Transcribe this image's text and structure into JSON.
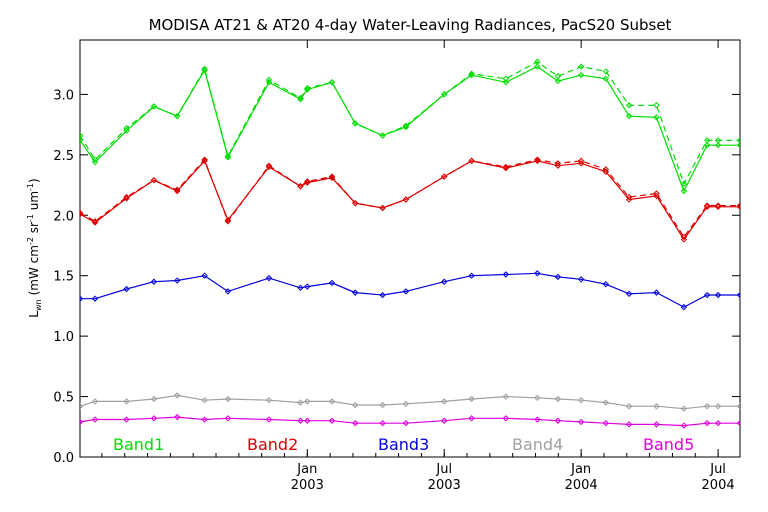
{
  "chart_data": {
    "type": "line",
    "title": "MODISA AT21 & AT20 4-day Water-Leaving Radiances, PacS20 Subset",
    "ylabel": "L_wn (mW cm^-2 sr^-1 um^-1)",
    "ylabel_main": "L",
    "ylabel_sub": "wn",
    "ylabel_rest": "(mW cm",
    "ylabel_exp1": "-2",
    "ylabel_mid1": " sr",
    "ylabel_exp2": "-1",
    "ylabel_mid2": " um",
    "ylabel_exp3": "-1",
    "ylabel_end": ")",
    "ylim": [
      0,
      3.45
    ],
    "yticks": [
      "0.0",
      "0.5",
      "1.0",
      "1.5",
      "2.0",
      "2.5",
      "3.0"
    ],
    "ytick_values": [
      0,
      0.5,
      1.0,
      1.5,
      2.0,
      2.5,
      3.0
    ],
    "xlim": [
      2002.17,
      2004.58
    ],
    "xticks": [
      {
        "value": 2003.0,
        "month": "Jan",
        "year": "2003"
      },
      {
        "value": 2003.5,
        "month": "Jul",
        "year": "2003"
      },
      {
        "value": 2004.0,
        "month": "Jan",
        "year": "2004"
      },
      {
        "value": 2004.5,
        "month": "Jul",
        "year": "2004"
      }
    ],
    "x": [
      2002.17,
      2002.225,
      2002.34,
      2002.44,
      2002.525,
      2002.625,
      2002.71,
      2002.86,
      2002.975,
      2003.0,
      2003.09,
      2003.175,
      2003.275,
      2003.36,
      2003.5,
      2003.6,
      2003.725,
      2003.84,
      2003.915,
      2004.0,
      2004.09,
      2004.175,
      2004.275,
      2004.375,
      2004.46,
      2004.5,
      2004.58
    ],
    "series": [
      {
        "name": "Band1",
        "color": "#00dd00",
        "values": [
          2.62,
          2.44,
          2.7,
          2.9,
          2.82,
          3.2,
          2.48,
          3.1,
          2.96,
          3.04,
          3.1,
          2.76,
          2.66,
          2.73,
          3.0,
          3.16,
          3.1,
          3.23,
          3.11,
          3.16,
          3.13,
          2.82,
          2.81,
          2.2,
          2.58,
          2.58,
          2.58
        ],
        "values2": [
          2.66,
          2.46,
          2.72,
          2.9,
          2.82,
          3.21,
          2.49,
          3.12,
          2.97,
          3.05,
          3.1,
          2.76,
          2.66,
          2.74,
          3.0,
          3.17,
          3.13,
          3.27,
          3.15,
          3.23,
          3.19,
          2.91,
          2.91,
          2.26,
          2.62,
          2.62,
          2.62
        ]
      },
      {
        "name": "Band2",
        "color": "#dd0000",
        "values": [
          2.01,
          1.94,
          2.14,
          2.29,
          2.2,
          2.45,
          1.96,
          2.4,
          2.24,
          2.27,
          2.31,
          2.1,
          2.06,
          2.13,
          2.32,
          2.45,
          2.39,
          2.45,
          2.41,
          2.43,
          2.36,
          2.13,
          2.16,
          1.8,
          2.07,
          2.07,
          2.07
        ],
        "values2": [
          2.02,
          1.95,
          2.15,
          2.29,
          2.21,
          2.46,
          1.95,
          2.41,
          2.24,
          2.28,
          2.32,
          2.1,
          2.06,
          2.13,
          2.32,
          2.45,
          2.4,
          2.46,
          2.43,
          2.45,
          2.38,
          2.15,
          2.18,
          1.82,
          2.08,
          2.08,
          2.08
        ]
      },
      {
        "name": "Band3",
        "color": "#0000dd",
        "values": [
          1.31,
          1.31,
          1.39,
          1.45,
          1.46,
          1.5,
          1.37,
          1.48,
          1.4,
          1.41,
          1.44,
          1.36,
          1.34,
          1.37,
          1.45,
          1.5,
          1.51,
          1.52,
          1.49,
          1.47,
          1.43,
          1.35,
          1.36,
          1.24,
          1.34,
          1.34,
          1.34
        ]
      },
      {
        "name": "Band4",
        "color": "#a0a0a0",
        "values": [
          0.42,
          0.46,
          0.46,
          0.48,
          0.51,
          0.47,
          0.48,
          0.47,
          0.45,
          0.46,
          0.46,
          0.43,
          0.43,
          0.44,
          0.46,
          0.48,
          0.5,
          0.49,
          0.48,
          0.47,
          0.45,
          0.42,
          0.42,
          0.4,
          0.42,
          0.42,
          0.42
        ]
      },
      {
        "name": "Band5",
        "color": "#dd00dd",
        "values": [
          0.29,
          0.31,
          0.31,
          0.32,
          0.33,
          0.31,
          0.32,
          0.31,
          0.3,
          0.3,
          0.3,
          0.28,
          0.28,
          0.28,
          0.3,
          0.32,
          0.32,
          0.31,
          0.3,
          0.29,
          0.28,
          0.27,
          0.27,
          0.26,
          0.28,
          0.28,
          0.28
        ]
      }
    ],
    "legend": [
      {
        "label": "Band1",
        "color": "#00dd00"
      },
      {
        "label": "Band2",
        "color": "#dd0000"
      },
      {
        "label": "Band3",
        "color": "#0000dd"
      },
      {
        "label": "Band4",
        "color": "#a0a0a0"
      },
      {
        "label": "Band5",
        "color": "#dd00dd"
      }
    ],
    "legend_position": "bottom-inside",
    "grid": false
  }
}
